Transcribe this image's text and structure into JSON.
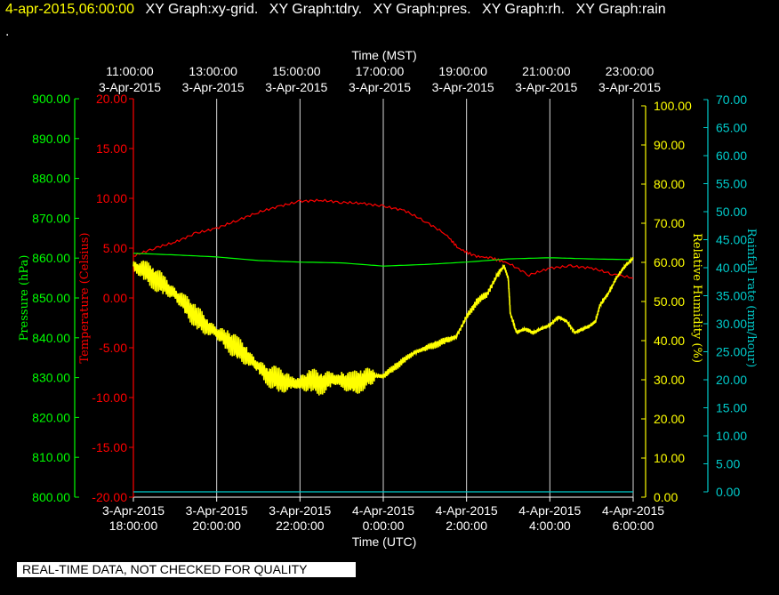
{
  "header": {
    "timestamp": "4-apr-2015,06:00:00",
    "graphs": [
      "XY Graph:xy-grid.",
      "XY Graph:tdry.",
      "XY Graph:pres.",
      "XY Graph:rh.",
      "XY Graph:rain"
    ],
    "dot": "."
  },
  "notice": "REAL-TIME DATA, NOT CHECKED FOR QUALITY",
  "colors": {
    "pressure": "#00ff00",
    "temperature": "#ff0000",
    "humidity": "#ffff00",
    "rain": "#00cccc",
    "grid": "#ffffff"
  },
  "chart_data": {
    "type": "line",
    "top_axis": {
      "label": "Time (MST)",
      "ticks": [
        {
          "time": "11:00:00",
          "date": "3-Apr-2015"
        },
        {
          "time": "13:00:00",
          "date": "3-Apr-2015"
        },
        {
          "time": "15:00:00",
          "date": "3-Apr-2015"
        },
        {
          "time": "17:00:00",
          "date": "3-Apr-2015"
        },
        {
          "time": "19:00:00",
          "date": "3-Apr-2015"
        },
        {
          "time": "21:00:00",
          "date": "3-Apr-2015"
        },
        {
          "time": "23:00:00",
          "date": "3-Apr-2015"
        }
      ]
    },
    "bottom_axis": {
      "label": "Time (UTC)",
      "ticks": [
        {
          "date": "3-Apr-2015",
          "time": "18:00:00"
        },
        {
          "date": "3-Apr-2015",
          "time": "20:00:00"
        },
        {
          "date": "3-Apr-2015",
          "time": "22:00:00"
        },
        {
          "date": "4-Apr-2015",
          "time": "0:00:00"
        },
        {
          "date": "4-Apr-2015",
          "time": "2:00:00"
        },
        {
          "date": "4-Apr-2015",
          "time": "4:00:00"
        },
        {
          "date": "4-Apr-2015",
          "time": "6:00:00"
        }
      ],
      "range_utc": [
        "2015-04-03 18:00",
        "2015-04-04 06:00"
      ]
    },
    "axes": {
      "pressure": {
        "label": "Pressure (hPa)",
        "min": 800,
        "max": 900,
        "ticks": [
          "800.00",
          "810.00",
          "820.00",
          "830.00",
          "840.00",
          "850.00",
          "860.00",
          "870.00",
          "880.00",
          "890.00",
          "900.00"
        ]
      },
      "temperature": {
        "label": "Temperature (Celsius)",
        "min": -20,
        "max": 20,
        "ticks": [
          "-20.00",
          "-15.00",
          "-10.00",
          "-5.00",
          "0.00",
          "5.00",
          "10.00",
          "15.00",
          "20.00"
        ]
      },
      "humidity": {
        "label": "Relative Humidity (%)",
        "min": 0,
        "max": 100,
        "ticks": [
          "0.00",
          "10.00",
          "20.00",
          "30.00",
          "40.00",
          "50.00",
          "60.00",
          "70.00",
          "80.00",
          "90.00",
          "100.00"
        ]
      },
      "rain": {
        "label": "Rainfall rate (mm/hour)",
        "min": 0,
        "max": 70,
        "ticks": [
          "0.00",
          "5.00",
          "10.00",
          "15.00",
          "20.00",
          "25.00",
          "30.00",
          "35.00",
          "40.00",
          "45.00",
          "50.00",
          "55.00",
          "60.00",
          "65.00",
          "70.00"
        ]
      }
    },
    "grid": true,
    "series": [
      {
        "axis": "temperature",
        "x": [
          0,
          0.5,
          1,
          1.5,
          2,
          2.5,
          3,
          3.5,
          4,
          4.5,
          5,
          5.5,
          6,
          6.5,
          7,
          7.5,
          7.8,
          8.2,
          8.6,
          9,
          9.5,
          10,
          10.5,
          11,
          11.5,
          12
        ],
        "y": [
          4.2,
          5.0,
          5.6,
          6.5,
          7.0,
          7.8,
          8.6,
          9.2,
          9.7,
          9.8,
          9.6,
          9.5,
          9.2,
          8.8,
          7.7,
          6.4,
          5.0,
          4.2,
          4.0,
          3.5,
          2.3,
          3.0,
          3.2,
          3.0,
          2.4,
          2.0
        ]
      },
      {
        "axis": "pressure",
        "x": [
          0,
          1,
          2,
          3,
          4,
          5,
          6,
          7,
          8,
          9,
          10,
          11,
          12
        ],
        "y": [
          861.2,
          860.8,
          860.3,
          859.4,
          859.0,
          858.8,
          858.0,
          858.4,
          859.0,
          859.8,
          860.1,
          859.8,
          859.6
        ]
      },
      {
        "axis": "humidity",
        "x": [
          0,
          0.25,
          0.5,
          0.75,
          1,
          1.25,
          1.5,
          1.75,
          2,
          2.25,
          2.5,
          2.75,
          3,
          3.25,
          3.5,
          3.75,
          4,
          4.25,
          4.5,
          4.75,
          5,
          5.25,
          5.5,
          5.75,
          6,
          6.25,
          6.5,
          6.75,
          7,
          7.25,
          7.5,
          7.75,
          8,
          8.25,
          8.5,
          8.75,
          8.9,
          9.0,
          9.05,
          9.2,
          9.4,
          9.6,
          9.8,
          10,
          10.2,
          10.4,
          10.6,
          10.8,
          11,
          11.1,
          11.2,
          11.4,
          11.6,
          11.8,
          12
        ],
        "y": [
          59,
          58,
          56,
          54,
          52,
          49,
          46,
          44,
          42,
          40,
          38,
          36,
          33,
          31,
          30,
          29,
          29,
          30,
          29,
          30,
          30,
          29,
          30,
          31,
          31,
          33,
          35,
          37,
          38,
          39,
          40,
          41,
          46,
          50,
          52,
          57,
          59,
          56,
          47,
          42,
          43,
          42,
          43,
          44,
          46,
          45,
          42,
          43,
          44,
          45,
          49,
          52,
          56,
          59,
          61
        ]
      },
      {
        "axis": "rain",
        "x": [
          0,
          12
        ],
        "y": [
          0,
          0
        ]
      }
    ]
  }
}
